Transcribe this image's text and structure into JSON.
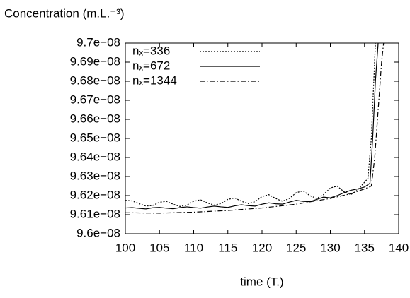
{
  "chart_data": {
    "type": "line",
    "y_label": "Concentration (m.L.⁻³)",
    "x_label": "time (T.)",
    "xlim": [
      100,
      140
    ],
    "xticks": [
      100,
      105,
      110,
      115,
      120,
      125,
      130,
      135,
      140
    ],
    "ylim": [
      9.6e-08,
      9.7e-08
    ],
    "yticks": [
      {
        "value": 9.6e-08,
        "label": "9.6e−08"
      },
      {
        "value": 9.61e-08,
        "label": "9.61e−08"
      },
      {
        "value": 9.62e-08,
        "label": "9.62e−08"
      },
      {
        "value": 9.63e-08,
        "label": "9.63e−08"
      },
      {
        "value": 9.64e-08,
        "label": "9.64e−08"
      },
      {
        "value": 9.65e-08,
        "label": "9.65e−08"
      },
      {
        "value": 9.66e-08,
        "label": "9.66e−08"
      },
      {
        "value": 9.67e-08,
        "label": "9.67e−08"
      },
      {
        "value": 9.68e-08,
        "label": "9.68e−08"
      },
      {
        "value": 9.69e-08,
        "label": "9.69e−08"
      },
      {
        "value": 9.7e-08,
        "label": "9.7e−08"
      }
    ],
    "legend": "upper left",
    "series": [
      {
        "name": "nₓ=336",
        "color": "#000000",
        "dash": "dotted",
        "x": [
          100,
          101,
          102,
          103,
          104,
          105,
          106,
          107,
          108,
          109,
          110,
          111,
          112,
          113,
          114,
          115,
          116,
          117,
          118,
          119,
          120,
          121,
          122,
          123,
          124,
          125,
          126,
          127,
          128,
          129,
          130,
          131,
          132,
          133,
          134,
          135,
          135.5,
          136,
          136.6
        ],
        "values": [
          9.6175e-08,
          9.6172e-08,
          9.6158e-08,
          9.6145e-08,
          9.6148e-08,
          9.6165e-08,
          9.617e-08,
          9.6155e-08,
          9.6143e-08,
          9.615e-08,
          9.617e-08,
          9.6178e-08,
          9.6162e-08,
          9.615e-08,
          9.6158e-08,
          9.618e-08,
          9.6188e-08,
          9.617e-08,
          9.6158e-08,
          9.6168e-08,
          9.6195e-08,
          9.6205e-08,
          9.6185e-08,
          9.617e-08,
          9.6185e-08,
          9.6215e-08,
          9.6225e-08,
          9.62e-08,
          9.6185e-08,
          9.6205e-08,
          9.624e-08,
          9.625e-08,
          9.622e-08,
          9.6205e-08,
          9.623e-08,
          9.627e-08,
          9.629e-08,
          9.65e-08,
          9.7e-08
        ]
      },
      {
        "name": "nₓ=672",
        "color": "#000000",
        "dash": "solid",
        "x": [
          100,
          101,
          102,
          103,
          104,
          105,
          106,
          107,
          108,
          109,
          110,
          111,
          112,
          113,
          114,
          115,
          116,
          117,
          118,
          119,
          120,
          121,
          122,
          123,
          124,
          125,
          126,
          127,
          128,
          129,
          130,
          131,
          132,
          133,
          134,
          135,
          135.8,
          136.2,
          136.6,
          137
        ],
        "values": [
          9.6135e-08,
          9.6137e-08,
          9.6133e-08,
          9.613e-08,
          9.6136e-08,
          9.6138e-08,
          9.6134e-08,
          9.6131e-08,
          9.6137e-08,
          9.6141e-08,
          9.6137e-08,
          9.6134e-08,
          9.614e-08,
          9.6145e-08,
          9.6141e-08,
          9.6138e-08,
          9.6146e-08,
          9.6152e-08,
          9.6147e-08,
          9.6145e-08,
          9.6155e-08,
          9.6162e-08,
          9.6157e-08,
          9.6155e-08,
          9.6166e-08,
          9.6175e-08,
          9.617e-08,
          9.6168e-08,
          9.618e-08,
          9.6192e-08,
          9.6188e-08,
          9.62e-08,
          9.6215e-08,
          9.6228e-08,
          9.6235e-08,
          9.6245e-08,
          9.6265e-08,
          9.65e-08,
          9.68e-08,
          9.7e-08
        ]
      },
      {
        "name": "nₓ=1344",
        "color": "#000000",
        "dash": "dashdot",
        "x": [
          100,
          105,
          110,
          115,
          120,
          125,
          130,
          133,
          135,
          136,
          136.5,
          137,
          137.5,
          137.8
        ],
        "values": [
          9.611e-08,
          9.6108e-08,
          9.6113e-08,
          9.6122e-08,
          9.6135e-08,
          9.6155e-08,
          9.6185e-08,
          9.621e-08,
          9.6235e-08,
          9.625e-08,
          9.64e-08,
          9.665e-08,
          9.69e-08,
          9.7e-08
        ]
      }
    ]
  }
}
